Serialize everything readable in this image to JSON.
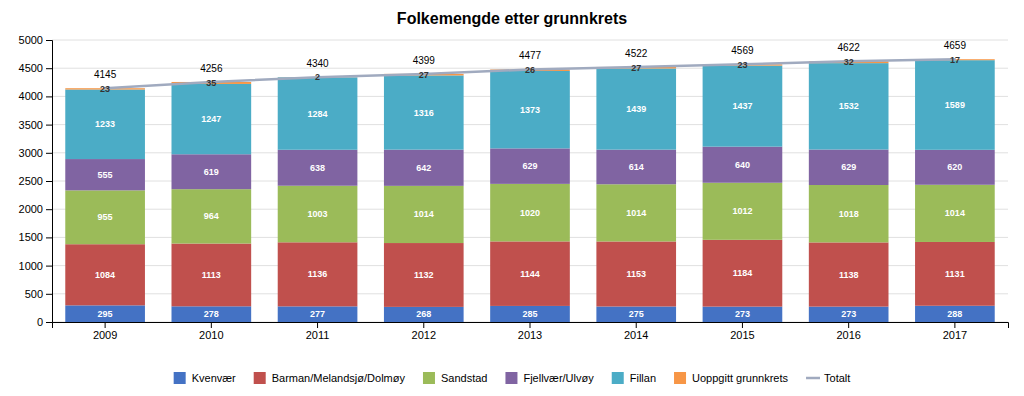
{
  "chart_data": {
    "type": "bar",
    "title": "Folkemengde etter grunnkrets",
    "categories": [
      "2009",
      "2010",
      "2011",
      "2012",
      "2013",
      "2014",
      "2015",
      "2016",
      "2017"
    ],
    "series": [
      {
        "name": "Kvenvær",
        "color": "#4472C4",
        "values": [
          295,
          278,
          277,
          268,
          285,
          275,
          273,
          273,
          288
        ]
      },
      {
        "name": "Barman/Melandsjø/Dolmøy",
        "color": "#C0504D",
        "values": [
          1084,
          1113,
          1136,
          1132,
          1144,
          1153,
          1184,
          1138,
          1131
        ]
      },
      {
        "name": "Sandstad",
        "color": "#9BBB59",
        "values": [
          955,
          964,
          1003,
          1014,
          1020,
          1014,
          1012,
          1018,
          1014
        ]
      },
      {
        "name": "Fjellvær/Ulvøy",
        "color": "#8064A2",
        "values": [
          555,
          619,
          638,
          642,
          629,
          614,
          640,
          629,
          620
        ]
      },
      {
        "name": "Fillan",
        "color": "#4BACC6",
        "values": [
          1233,
          1247,
          1284,
          1316,
          1373,
          1439,
          1437,
          1532,
          1589
        ]
      },
      {
        "name": "Uoppgitt grunnkrets",
        "color": "#F79646",
        "values": [
          23,
          35,
          2,
          27,
          26,
          27,
          23,
          32,
          17
        ]
      },
      {
        "name": "Totalt",
        "type": "line",
        "color": "#A0AABF",
        "values": [
          4145,
          4256,
          4340,
          4399,
          4477,
          4522,
          4569,
          4622,
          4659
        ]
      }
    ],
    "stacked": true,
    "data_labels": true,
    "grid": true,
    "legend": "bottom",
    "ylim": [
      0,
      5000
    ],
    "yticks": [
      0,
      500,
      1000,
      1500,
      2000,
      2500,
      3000,
      3500,
      4000,
      4500,
      5000
    ]
  }
}
